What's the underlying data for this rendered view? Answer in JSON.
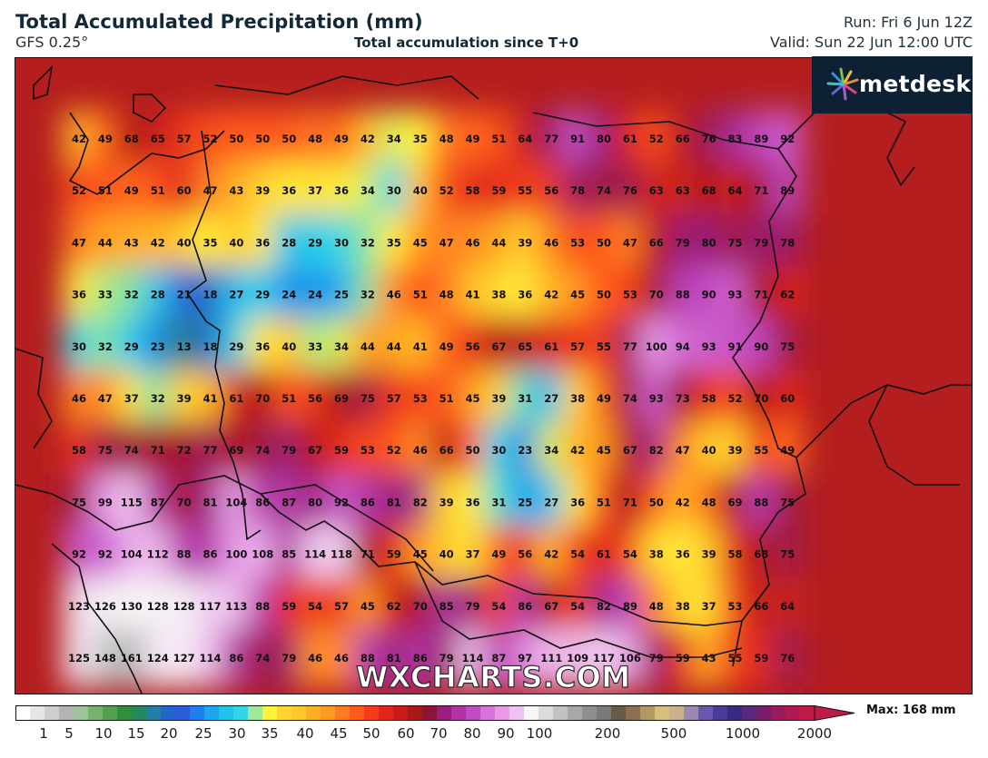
{
  "header": {
    "title": "Total Accumulated Precipitation (mm)",
    "model": "GFS 0.25°",
    "subtitle": "Total accumulation since T+0",
    "run": "Run: Fri 6 Jun 12Z",
    "valid": "Valid: Sun 22 Jun 12:00 UTC"
  },
  "logo": {
    "text": "metdesk"
  },
  "watermark": "WXCHARTS.COM",
  "legend": {
    "max_label": "Max: 168 mm",
    "ticks": [
      "1",
      "5",
      "10",
      "15",
      "20",
      "25",
      "30",
      "35",
      "40",
      "45",
      "50",
      "60",
      "70",
      "80",
      "90",
      "100",
      "200",
      "500",
      "1000",
      "2000"
    ]
  },
  "grid_values": [
    [
      42,
      49,
      68,
      65,
      57,
      52,
      50,
      50,
      50,
      48,
      49,
      42,
      34,
      35,
      48,
      49,
      51,
      64,
      77,
      91,
      80,
      61,
      52,
      66,
      76,
      83,
      89,
      92
    ],
    [
      52,
      51,
      49,
      51,
      60,
      47,
      43,
      39,
      36,
      37,
      36,
      34,
      30,
      40,
      52,
      58,
      59,
      55,
      56,
      78,
      74,
      76,
      63,
      63,
      68,
      64,
      71,
      89
    ],
    [
      47,
      44,
      43,
      42,
      40,
      35,
      40,
      36,
      28,
      29,
      30,
      32,
      35,
      45,
      47,
      46,
      44,
      39,
      46,
      53,
      50,
      47,
      66,
      79,
      80,
      75,
      79,
      78
    ],
    [
      36,
      33,
      32,
      28,
      21,
      18,
      27,
      29,
      24,
      24,
      25,
      32,
      46,
      51,
      48,
      41,
      38,
      36,
      42,
      45,
      50,
      53,
      70,
      88,
      90,
      93,
      71,
      62
    ],
    [
      30,
      32,
      29,
      23,
      13,
      18,
      29,
      36,
      40,
      33,
      34,
      44,
      44,
      41,
      49,
      56,
      67,
      65,
      61,
      57,
      55,
      77,
      100,
      94,
      93,
      91,
      90,
      75
    ],
    [
      46,
      47,
      37,
      32,
      39,
      41,
      61,
      70,
      51,
      56,
      69,
      75,
      57,
      53,
      51,
      45,
      39,
      31,
      27,
      38,
      49,
      74,
      93,
      73,
      58,
      52,
      70,
      60
    ],
    [
      58,
      75,
      74,
      71,
      72,
      77,
      69,
      74,
      79,
      67,
      59,
      53,
      52,
      46,
      66,
      50,
      30,
      23,
      34,
      42,
      45,
      67,
      82,
      47,
      40,
      39,
      55,
      49
    ],
    [
      75,
      99,
      115,
      87,
      70,
      81,
      104,
      86,
      87,
      80,
      92,
      86,
      81,
      82,
      39,
      36,
      31,
      25,
      27,
      36,
      51,
      71,
      50,
      42,
      48,
      69,
      88,
      75
    ],
    [
      92,
      92,
      104,
      112,
      88,
      86,
      100,
      108,
      85,
      114,
      118,
      71,
      59,
      45,
      40,
      37,
      49,
      56,
      42,
      54,
      61,
      54,
      38,
      36,
      39,
      58,
      68,
      75
    ],
    [
      123,
      126,
      130,
      128,
      128,
      117,
      113,
      88,
      59,
      54,
      57,
      45,
      62,
      70,
      85,
      79,
      54,
      86,
      67,
      54,
      82,
      89,
      48,
      38,
      37,
      53,
      66,
      64
    ],
    [
      125,
      148,
      161,
      124,
      127,
      114,
      86,
      74,
      79,
      46,
      46,
      88,
      81,
      86,
      79,
      114,
      87,
      97,
      111,
      109,
      117,
      106,
      79,
      59,
      43,
      55,
      59,
      76
    ]
  ]
}
